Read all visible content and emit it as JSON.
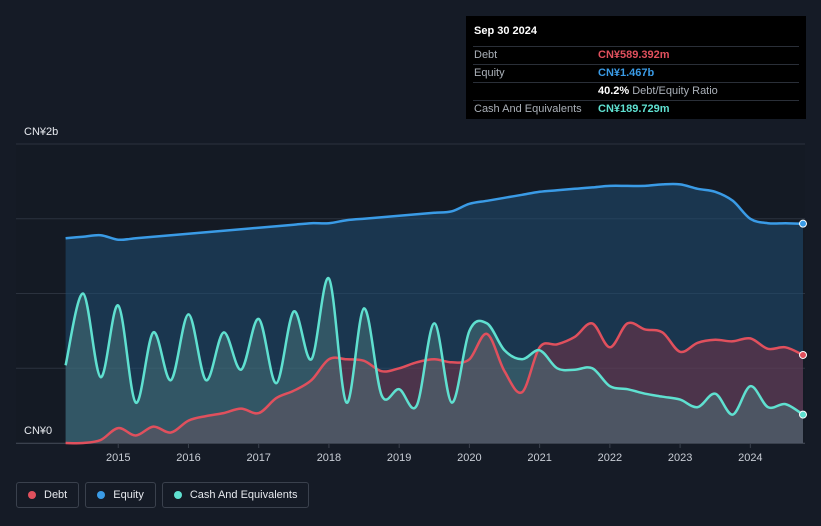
{
  "tooltip": {
    "date": "Sep 30 2024",
    "rows": [
      {
        "label": "Debt",
        "value": "CN¥589.392m",
        "color": "#e0505d"
      },
      {
        "label": "Equity",
        "value": "CN¥1.467b",
        "color": "#3a9be6"
      },
      {
        "label": "",
        "value": "40.2%",
        "suffix": "Debt/Equity Ratio",
        "color": "#ffffff"
      },
      {
        "label": "Cash And Equivalents",
        "value": "CN¥189.729m",
        "color": "#5fe0d0"
      }
    ]
  },
  "legend": [
    {
      "label": "Debt",
      "color": "#e0505d"
    },
    {
      "label": "Equity",
      "color": "#3a9be6"
    },
    {
      "label": "Cash And Equivalents",
      "color": "#5fe0d0"
    }
  ],
  "chart_data": {
    "type": "area",
    "ytick_labels": [
      "CN¥2b",
      "CN¥0"
    ],
    "ylim": [
      0,
      2.0
    ],
    "xlim": [
      2014.0,
      2024.75
    ],
    "xticks": [
      "2015",
      "2016",
      "2017",
      "2018",
      "2019",
      "2020",
      "2021",
      "2022",
      "2023",
      "2024"
    ],
    "xtick_values": [
      2015,
      2016,
      2017,
      2018,
      2019,
      2020,
      2021,
      2022,
      2023,
      2024
    ],
    "series": [
      {
        "name": "Equity",
        "color": "#3a9be6",
        "points": [
          [
            2014.25,
            1.37
          ],
          [
            2014.5,
            1.38
          ],
          [
            2014.75,
            1.39
          ],
          [
            2015.0,
            1.36
          ],
          [
            2015.25,
            1.37
          ],
          [
            2015.5,
            1.38
          ],
          [
            2015.75,
            1.39
          ],
          [
            2016.0,
            1.4
          ],
          [
            2016.25,
            1.41
          ],
          [
            2016.5,
            1.42
          ],
          [
            2016.75,
            1.43
          ],
          [
            2017.0,
            1.44
          ],
          [
            2017.25,
            1.45
          ],
          [
            2017.5,
            1.46
          ],
          [
            2017.75,
            1.47
          ],
          [
            2018.0,
            1.47
          ],
          [
            2018.25,
            1.49
          ],
          [
            2018.5,
            1.5
          ],
          [
            2018.75,
            1.51
          ],
          [
            2019.0,
            1.52
          ],
          [
            2019.25,
            1.53
          ],
          [
            2019.5,
            1.54
          ],
          [
            2019.75,
            1.55
          ],
          [
            2020.0,
            1.6
          ],
          [
            2020.25,
            1.62
          ],
          [
            2020.5,
            1.64
          ],
          [
            2020.75,
            1.66
          ],
          [
            2021.0,
            1.68
          ],
          [
            2021.25,
            1.69
          ],
          [
            2021.5,
            1.7
          ],
          [
            2021.75,
            1.71
          ],
          [
            2022.0,
            1.72
          ],
          [
            2022.25,
            1.72
          ],
          [
            2022.5,
            1.72
          ],
          [
            2022.75,
            1.73
          ],
          [
            2023.0,
            1.73
          ],
          [
            2023.25,
            1.7
          ],
          [
            2023.5,
            1.68
          ],
          [
            2023.75,
            1.62
          ],
          [
            2024.0,
            1.5
          ],
          [
            2024.25,
            1.47
          ],
          [
            2024.5,
            1.47
          ],
          [
            2024.75,
            1.467
          ]
        ]
      },
      {
        "name": "Debt",
        "color": "#e0505d",
        "points": [
          [
            2014.25,
            0.0
          ],
          [
            2014.5,
            0.0
          ],
          [
            2014.75,
            0.02
          ],
          [
            2015.0,
            0.1
          ],
          [
            2015.25,
            0.05
          ],
          [
            2015.5,
            0.11
          ],
          [
            2015.75,
            0.07
          ],
          [
            2016.0,
            0.15
          ],
          [
            2016.25,
            0.18
          ],
          [
            2016.5,
            0.2
          ],
          [
            2016.75,
            0.23
          ],
          [
            2017.0,
            0.2
          ],
          [
            2017.25,
            0.3
          ],
          [
            2017.5,
            0.35
          ],
          [
            2017.75,
            0.42
          ],
          [
            2018.0,
            0.56
          ],
          [
            2018.25,
            0.56
          ],
          [
            2018.5,
            0.55
          ],
          [
            2018.75,
            0.48
          ],
          [
            2019.0,
            0.5
          ],
          [
            2019.25,
            0.54
          ],
          [
            2019.5,
            0.56
          ],
          [
            2019.75,
            0.54
          ],
          [
            2020.0,
            0.56
          ],
          [
            2020.25,
            0.73
          ],
          [
            2020.5,
            0.48
          ],
          [
            2020.75,
            0.34
          ],
          [
            2021.0,
            0.64
          ],
          [
            2021.25,
            0.66
          ],
          [
            2021.5,
            0.71
          ],
          [
            2021.75,
            0.8
          ],
          [
            2022.0,
            0.64
          ],
          [
            2022.25,
            0.8
          ],
          [
            2022.5,
            0.76
          ],
          [
            2022.75,
            0.74
          ],
          [
            2023.0,
            0.61
          ],
          [
            2023.25,
            0.67
          ],
          [
            2023.5,
            0.69
          ],
          [
            2023.75,
            0.68
          ],
          [
            2024.0,
            0.7
          ],
          [
            2024.25,
            0.63
          ],
          [
            2024.5,
            0.64
          ],
          [
            2024.75,
            0.589
          ]
        ]
      },
      {
        "name": "Cash And Equivalents",
        "color": "#5fe0d0",
        "points": [
          [
            2014.25,
            0.52
          ],
          [
            2014.5,
            1.0
          ],
          [
            2014.75,
            0.44
          ],
          [
            2015.0,
            0.92
          ],
          [
            2015.25,
            0.27
          ],
          [
            2015.5,
            0.74
          ],
          [
            2015.75,
            0.42
          ],
          [
            2016.0,
            0.86
          ],
          [
            2016.25,
            0.42
          ],
          [
            2016.5,
            0.74
          ],
          [
            2016.75,
            0.49
          ],
          [
            2017.0,
            0.83
          ],
          [
            2017.25,
            0.4
          ],
          [
            2017.5,
            0.88
          ],
          [
            2017.75,
            0.56
          ],
          [
            2018.0,
            1.1
          ],
          [
            2018.25,
            0.27
          ],
          [
            2018.5,
            0.9
          ],
          [
            2018.75,
            0.32
          ],
          [
            2019.0,
            0.36
          ],
          [
            2019.25,
            0.25
          ],
          [
            2019.5,
            0.8
          ],
          [
            2019.75,
            0.27
          ],
          [
            2020.0,
            0.75
          ],
          [
            2020.25,
            0.8
          ],
          [
            2020.5,
            0.62
          ],
          [
            2020.75,
            0.56
          ],
          [
            2021.0,
            0.62
          ],
          [
            2021.25,
            0.5
          ],
          [
            2021.5,
            0.49
          ],
          [
            2021.75,
            0.5
          ],
          [
            2022.0,
            0.38
          ],
          [
            2022.25,
            0.36
          ],
          [
            2022.5,
            0.33
          ],
          [
            2022.75,
            0.31
          ],
          [
            2023.0,
            0.29
          ],
          [
            2023.25,
            0.24
          ],
          [
            2023.5,
            0.33
          ],
          [
            2023.75,
            0.19
          ],
          [
            2024.0,
            0.38
          ],
          [
            2024.25,
            0.24
          ],
          [
            2024.5,
            0.26
          ],
          [
            2024.75,
            0.19
          ]
        ]
      }
    ]
  }
}
